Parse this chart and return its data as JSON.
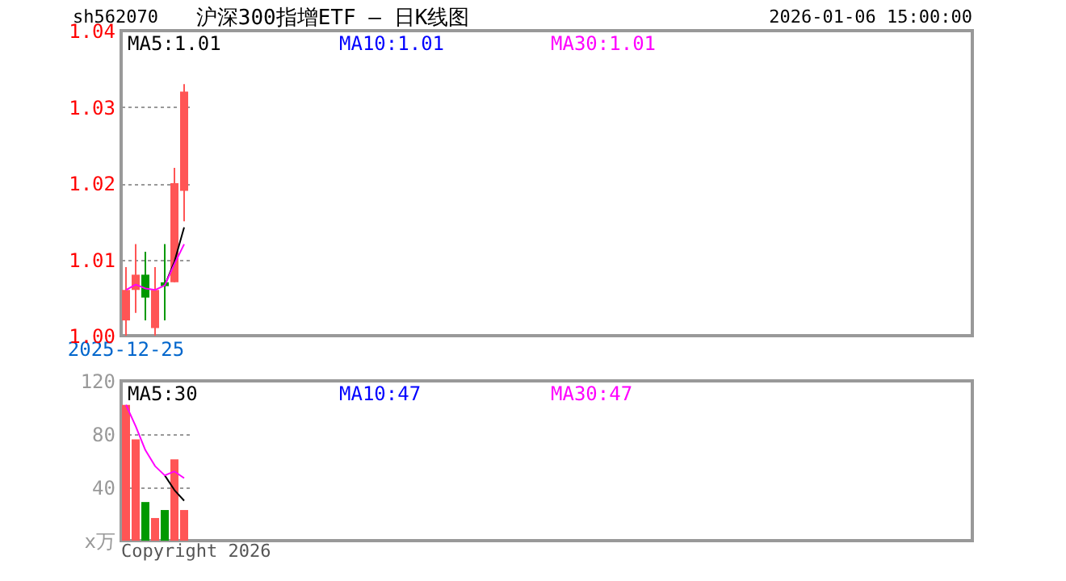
{
  "chart_data": [
    {
      "type": "candlestick",
      "title": "沪深300指增ETF — 日K线图",
      "annotations": [
        "sh562070",
        "2026-01-06 15:00:00"
      ],
      "categories": [
        "2025-12-25",
        null,
        null,
        null,
        null,
        null,
        null
      ],
      "ohlc": [
        [
          1.002,
          1.009,
          1.0,
          1.006
        ],
        [
          1.006,
          1.012,
          1.003,
          1.008
        ],
        [
          1.008,
          1.011,
          1.002,
          1.005
        ],
        [
          1.001,
          1.009,
          1.0,
          1.006
        ],
        [
          1.007,
          1.012,
          1.002,
          1.0065
        ],
        [
          1.007,
          1.022,
          1.007,
          1.02
        ],
        [
          1.019,
          1.033,
          1.015,
          1.032
        ]
      ],
      "colors": [
        "#ff5555",
        "#ff5555",
        "#009900",
        "#ff5555",
        "#009900",
        "#ff5555",
        "#ff5555"
      ],
      "series": [
        {
          "type": "line",
          "name": "MA5:1.01",
          "color": "#000000",
          "values": [
            null,
            null,
            null,
            null,
            1.0066,
            1.0097,
            1.0142
          ]
        },
        {
          "type": "line",
          "name": "MA10:1.01",
          "color": "#0000ff",
          "values": [
            null,
            null,
            null,
            null,
            null,
            null,
            null
          ]
        },
        {
          "type": "line",
          "name": "MA30:1.01",
          "color": "#ff00ff",
          "values": [
            1.006,
            1.0067,
            1.0062,
            1.006,
            1.0066,
            1.0094,
            1.012
          ]
        }
      ],
      "ylim": [
        1.0,
        1.04
      ],
      "yticks": [
        {
          "value": 1.0,
          "label": "1.00"
        },
        1.01,
        1.02,
        1.03,
        1.04
      ],
      "grid": "y",
      "marker": "none",
      "line_style": "solid"
    },
    {
      "type": "bar",
      "annotations": [
        "Copyright 2026"
      ],
      "categories": [
        null,
        null,
        null,
        null,
        null,
        null,
        null
      ],
      "series": [
        {
          "type": "bar",
          "colors": [
            "#ff5555",
            "#ff5555",
            "#009900",
            "#ff5555",
            "#009900",
            "#ff5555",
            "#ff5555"
          ],
          "values": [
            102,
            76,
            29,
            17,
            23,
            61,
            23
          ]
        },
        {
          "type": "line",
          "name": "MA5:30",
          "color": "#000000",
          "values": [
            null,
            null,
            null,
            null,
            49,
            38,
            30
          ]
        },
        {
          "type": "line",
          "name": "MA10:47",
          "color": "#0000ff",
          "values": [
            null,
            null,
            null,
            null,
            null,
            null,
            null
          ]
        },
        {
          "type": "line",
          "name": "MA30:47",
          "color": "#ff00ff",
          "values": [
            102,
            86,
            68,
            56,
            49,
            52,
            47
          ]
        }
      ],
      "ylim": [
        0,
        120
      ],
      "yticks": [
        {
          "value": 0,
          "label": "x万"
        },
        40,
        80,
        120
      ],
      "grid": "y",
      "tick_labels": "y",
      "marker": "none",
      "line_style": "solid"
    }
  ]
}
